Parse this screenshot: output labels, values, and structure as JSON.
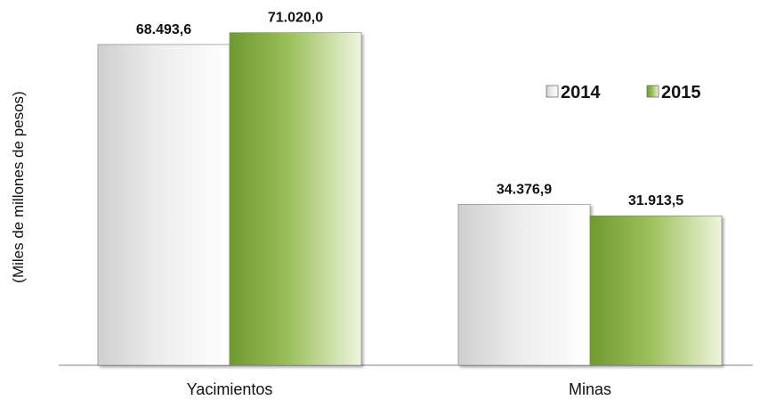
{
  "chart_data": {
    "type": "bar",
    "title": "",
    "ylabel": "(Miles de millones de pesos)",
    "xlabel": "",
    "categories": [
      "Yacimientos",
      "Minas"
    ],
    "series": [
      {
        "name": "2014",
        "values": [
          68493.6,
          34376.9
        ],
        "value_labels": [
          "68.493,6",
          "34.376,9"
        ],
        "color": "#d9d9d9"
      },
      {
        "name": "2015",
        "values": [
          71020.0,
          31913.5
        ],
        "value_labels": [
          "71.020,0",
          "31.913,5"
        ],
        "color": "#8cb04a"
      }
    ],
    "ylim": [
      0,
      78000
    ],
    "grid": false,
    "legend_position": "top-right"
  }
}
